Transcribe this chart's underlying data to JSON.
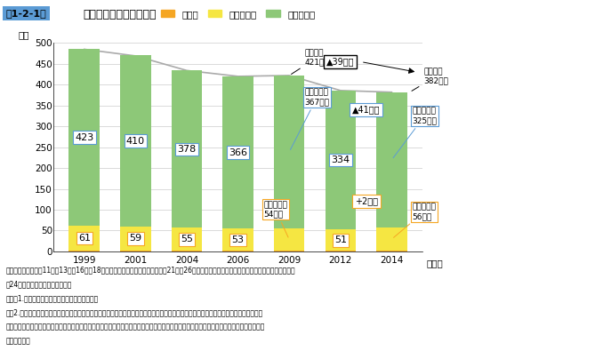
{
  "years": [
    1999,
    2001,
    2004,
    2006,
    2009,
    2012,
    2014
  ],
  "small_enterprise": [
    423,
    410,
    378,
    366,
    367,
    334,
    325
  ],
  "medium_enterprise": [
    61,
    59,
    55,
    53,
    54,
    51,
    56
  ],
  "large_enterprise": [
    1.2,
    1.2,
    1.2,
    1.2,
    1.2,
    1.1,
    1.1
  ],
  "total_line": [
    485.2,
    469.2,
    434.2,
    420.2,
    422.2,
    386.1,
    382.1
  ],
  "color_large": "#f5a623",
  "color_medium": "#f5e642",
  "color_small": "#8dc878",
  "color_line": "#aaaaaa",
  "bar_width": 0.6,
  "ylim": [
    0,
    500
  ],
  "yticks": [
    0,
    50,
    100,
    150,
    200,
    250,
    300,
    350,
    400,
    450,
    500
  ],
  "ylabel": "万者",
  "xlabel": "（年）",
  "title": "第1-2-1図　企業規模別企業数の推移",
  "legend_labels": [
    "大企業",
    "中規模企業",
    "小規模企業"
  ],
  "note_text": "資料：総務省「平成11年、13年、16年、18年事業所・企業統計調査」、「平成21年、26年経済センサスー基礎調査」、総務省・経済産業省「平成 24年経済センサスー活動調査」",
  "note2": "（注）1.企業数＝会社数＋個人事業者数とする。",
  "note3": "2.経済センサスでは、商業・法人登記等の行政記録を活用して、事業所・企業の補足範囲を拡大しており、本社等の事業主が支所等の 情報も一括して報告する本社等一括調査を実施しているため、「事業所・企業統計調査」による結果と単純に比較することは適切では ない。"
}
